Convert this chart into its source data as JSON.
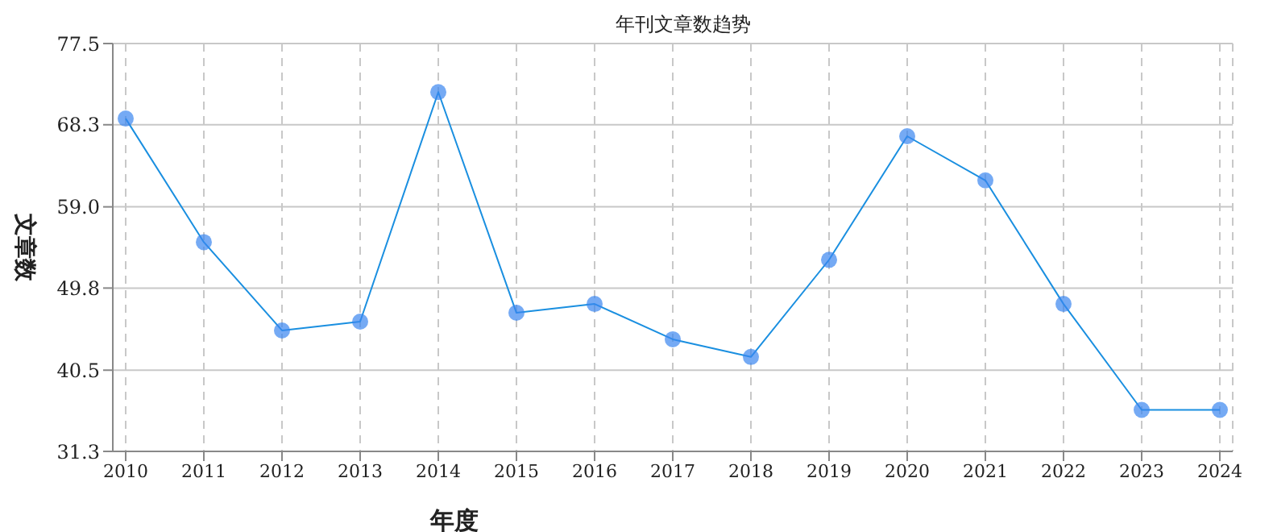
{
  "chart_data": {
    "type": "line",
    "title": "年刊文章数趋势",
    "xlabel": "年度",
    "ylabel": "文章数",
    "categories": [
      "2010",
      "2011",
      "2012",
      "2013",
      "2014",
      "2015",
      "2016",
      "2017",
      "2018",
      "2019",
      "2020",
      "2021",
      "2022",
      "2023",
      "2024"
    ],
    "series": [
      {
        "color": "#1a8fe0",
        "values": [
          69,
          55,
          45,
          46,
          72,
          47,
          48,
          44,
          42,
          53,
          67,
          62,
          48,
          36,
          36
        ]
      }
    ],
    "ylim": [
      31.3,
      77.5
    ],
    "yticks": [
      31.3,
      40.5,
      49.8,
      {
        "value": 59,
        "label": "59.0"
      },
      68.3,
      77.5
    ],
    "grid": true,
    "marker": "circle",
    "line_style": "solid"
  }
}
